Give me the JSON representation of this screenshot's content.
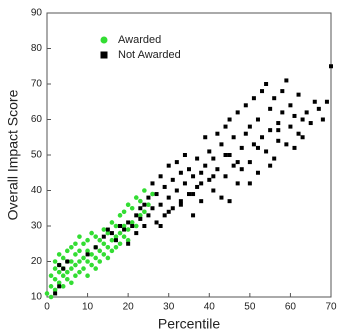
{
  "chart_data": {
    "type": "scatter",
    "xlabel": "Percentile",
    "ylabel": "Overall Impact Score",
    "xlim": [
      0,
      70
    ],
    "ylim": [
      10,
      90
    ],
    "xticks": [
      0,
      10,
      20,
      30,
      40,
      50,
      60,
      70
    ],
    "yticks": [
      10,
      20,
      30,
      40,
      50,
      60,
      70,
      80,
      90
    ],
    "legend": "upper left",
    "series": [
      {
        "name": "Awarded",
        "color": "#33dd33",
        "marker": "circle",
        "x": [
          0,
          1,
          1,
          1,
          2,
          2,
          2,
          2,
          3,
          3,
          3,
          3,
          4,
          4,
          4,
          4,
          5,
          5,
          5,
          5,
          6,
          6,
          6,
          6,
          7,
          7,
          7,
          7,
          8,
          8,
          8,
          8,
          9,
          9,
          9,
          10,
          10,
          10,
          10,
          11,
          11,
          11,
          12,
          12,
          12,
          12,
          13,
          13,
          13,
          14,
          14,
          14,
          15,
          15,
          15,
          16,
          16,
          16,
          17,
          17,
          17,
          18,
          18,
          18,
          19,
          19,
          19,
          20,
          20,
          20,
          21,
          21,
          22,
          22,
          23,
          23,
          24,
          24,
          25,
          26
        ],
        "y": [
          11,
          10,
          13,
          16,
          12,
          15,
          18,
          20,
          14,
          17,
          19,
          22,
          13,
          16,
          18,
          21,
          15,
          17,
          20,
          23,
          14,
          18,
          20,
          24,
          16,
          19,
          22,
          25,
          17,
          20,
          23,
          27,
          18,
          21,
          25,
          16,
          20,
          23,
          26,
          19,
          22,
          28,
          18,
          21,
          24,
          27,
          20,
          23,
          26,
          22,
          25,
          29,
          21,
          24,
          28,
          23,
          26,
          31,
          24,
          27,
          30,
          25,
          28,
          33,
          27,
          30,
          34,
          26,
          29,
          36,
          31,
          35,
          30,
          38,
          33,
          37,
          34,
          40,
          36,
          39
        ]
      },
      {
        "name": "Not Awarded",
        "color": "#000000",
        "marker": "square",
        "x": [
          2,
          3,
          3,
          4,
          5,
          10,
          12,
          14,
          15,
          16,
          17,
          18,
          19,
          20,
          20,
          21,
          22,
          22,
          23,
          23,
          24,
          24,
          25,
          25,
          26,
          26,
          27,
          27,
          28,
          28,
          29,
          29,
          30,
          30,
          31,
          31,
          32,
          32,
          33,
          33,
          34,
          34,
          35,
          35,
          36,
          36,
          37,
          37,
          38,
          38,
          39,
          39,
          40,
          40,
          41,
          41,
          42,
          42,
          43,
          43,
          44,
          44,
          45,
          45,
          46,
          46,
          47,
          47,
          48,
          48,
          49,
          49,
          50,
          50,
          51,
          51,
          52,
          52,
          53,
          53,
          54,
          54,
          55,
          55,
          56,
          56,
          57,
          57,
          58,
          58,
          59,
          59,
          60,
          60,
          61,
          61,
          62,
          62,
          63,
          63,
          64,
          65,
          66,
          67,
          68,
          69,
          70,
          45,
          50,
          55,
          28,
          30,
          33,
          36,
          38,
          41,
          44,
          47,
          52,
          57
        ],
        "y": [
          11,
          13,
          19,
          18,
          20,
          22,
          24,
          27,
          29,
          28,
          26,
          30,
          29,
          25,
          31,
          30,
          28,
          33,
          32,
          35,
          30,
          36,
          33,
          38,
          35,
          42,
          31,
          39,
          36,
          44,
          33,
          41,
          38,
          47,
          35,
          43,
          40,
          48,
          37,
          45,
          42,
          50,
          39,
          46,
          44,
          33,
          41,
          49,
          45,
          37,
          47,
          55,
          43,
          51,
          40,
          49,
          46,
          56,
          38,
          53,
          44,
          58,
          50,
          60,
          47,
          55,
          42,
          62,
          52,
          46,
          56,
          64,
          48,
          58,
          53,
          66,
          45,
          60,
          55,
          68,
          51,
          70,
          57,
          63,
          49,
          66,
          59,
          54,
          62,
          68,
          53,
          71,
          58,
          64,
          52,
          61,
          56,
          67,
          60,
          55,
          62,
          59,
          65,
          63,
          60,
          65,
          75,
          37,
          42,
          47,
          30,
          34,
          36,
          39,
          42,
          44,
          50,
          48,
          52,
          57
        ]
      }
    ]
  }
}
